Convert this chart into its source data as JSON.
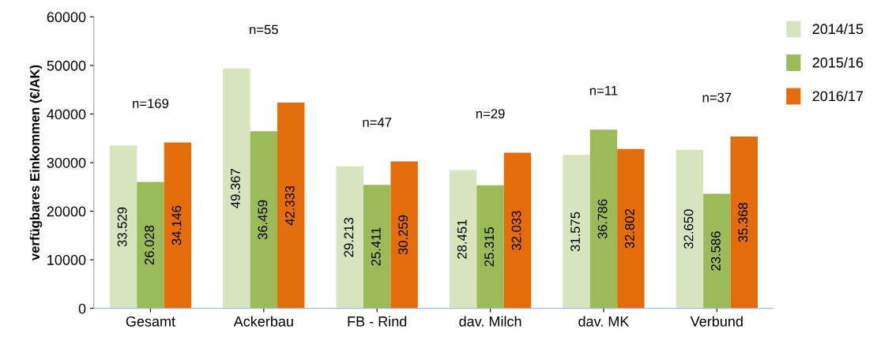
{
  "chart_data": {
    "type": "bar",
    "ylabel": "verfügbares Einkommen (€/AK)",
    "categories": [
      "Gesamt",
      "Ackerbau",
      "FB - Rind",
      "dav. Milch",
      "dav. MK",
      "Verbund"
    ],
    "series": [
      {
        "name": "2014/15",
        "color": "#d7e4bd",
        "values": [
          33529,
          49367,
          29213,
          28451,
          31575,
          32650
        ],
        "value_labels": [
          "33.529",
          "49.367",
          "29.213",
          "28.451",
          "31.575",
          "32.650"
        ]
      },
      {
        "name": "2015/16",
        "color": "#9bbb59",
        "values": [
          26028,
          36459,
          25411,
          25315,
          36786,
          23586
        ],
        "value_labels": [
          "26.028",
          "36.459",
          "25.411",
          "25.315",
          "36.786",
          "23.586"
        ]
      },
      {
        "name": "2016/17",
        "color": "#e46c0a",
        "values": [
          34146,
          42333,
          30259,
          32033,
          32802,
          35368
        ],
        "value_labels": [
          "34.146",
          "42.333",
          "30.259",
          "32.033",
          "32.802",
          "35.368"
        ]
      }
    ],
    "annotations": [
      "n=169",
      "n=55",
      "n=47",
      "n=29",
      "n=11",
      "n=37"
    ],
    "ylim": [
      0,
      60000
    ],
    "yticks": [
      0,
      10000,
      20000,
      30000,
      40000,
      50000,
      60000
    ],
    "grid": false,
    "legend": "top right"
  }
}
